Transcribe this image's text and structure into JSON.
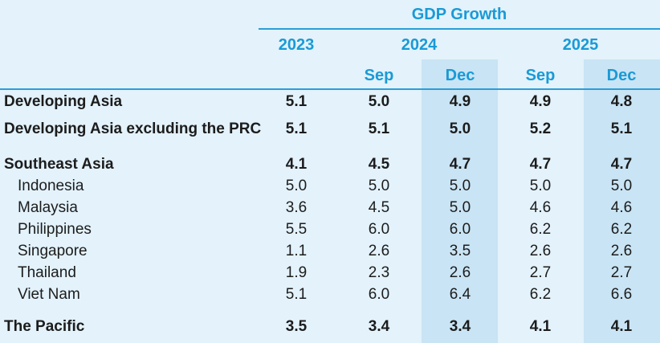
{
  "header": {
    "group_title": "GDP Growth",
    "years": [
      "2023",
      "2024",
      "2025"
    ],
    "subcols": [
      "Sep",
      "Dec",
      "Sep",
      "Dec"
    ]
  },
  "rows": [
    {
      "label": "Developing Asia",
      "values": [
        "5.1",
        "5.0",
        "4.9",
        "4.9",
        "4.8"
      ]
    },
    {
      "label": "Developing Asia excluding the PRC",
      "values": [
        "5.1",
        "5.1",
        "5.0",
        "5.2",
        "5.1"
      ]
    },
    {
      "label": "Southeast Asia",
      "values": [
        "4.1",
        "4.5",
        "4.7",
        "4.7",
        "4.7"
      ]
    },
    {
      "label": "Indonesia",
      "values": [
        "5.0",
        "5.0",
        "5.0",
        "5.0",
        "5.0"
      ]
    },
    {
      "label": "Malaysia",
      "values": [
        "3.6",
        "4.5",
        "5.0",
        "4.6",
        "4.6"
      ]
    },
    {
      "label": "Philippines",
      "values": [
        "5.5",
        "6.0",
        "6.0",
        "6.2",
        "6.2"
      ]
    },
    {
      "label": "Singapore",
      "values": [
        "1.1",
        "2.6",
        "3.5",
        "2.6",
        "2.6"
      ]
    },
    {
      "label": "Thailand",
      "values": [
        "1.9",
        "2.3",
        "2.6",
        "2.7",
        "2.7"
      ]
    },
    {
      "label": "Viet Nam",
      "values": [
        "5.1",
        "6.0",
        "6.4",
        "6.2",
        "6.6"
      ]
    },
    {
      "label": "The Pacific",
      "values": [
        "3.5",
        "3.4",
        "3.4",
        "4.1",
        "4.1"
      ]
    }
  ],
  "colors": {
    "accent": "#1a9ad6",
    "background": "#e3f2fb",
    "highlight": "#c9e4f4"
  }
}
